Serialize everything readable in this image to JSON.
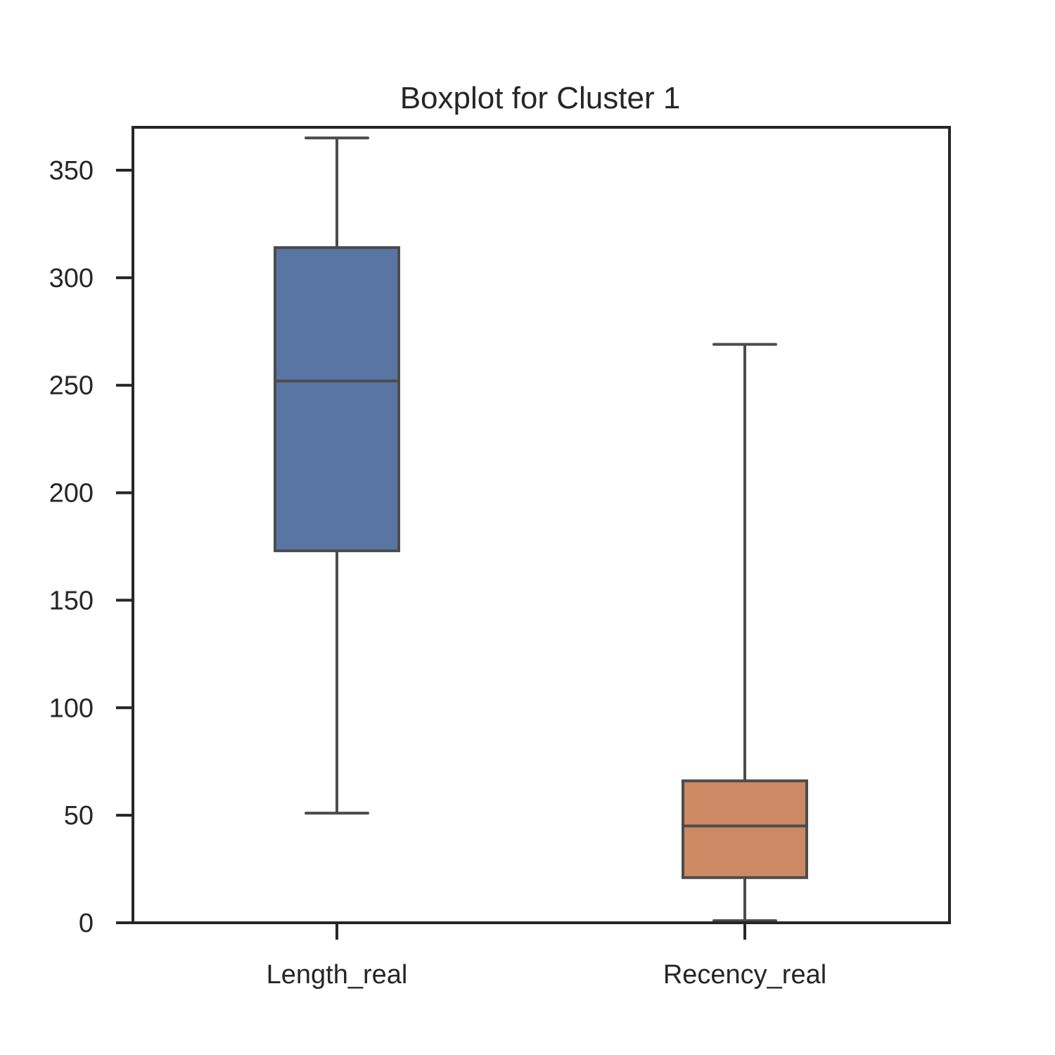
{
  "chart_data": {
    "type": "boxplot",
    "title": "Boxplot for Cluster 1",
    "xlabel": "",
    "ylabel": "",
    "ylim": [
      0,
      370
    ],
    "yticks": [
      0,
      50,
      100,
      150,
      200,
      250,
      300,
      350
    ],
    "categories": [
      "Length_real",
      "Recency_real"
    ],
    "boxes": [
      {
        "category": "Length_real",
        "whisker_low": 51,
        "q1": 173,
        "median": 252,
        "q3": 314,
        "whisker_high": 365,
        "color": "#5875a4"
      },
      {
        "category": "Recency_real",
        "whisker_low": 1,
        "q1": 21,
        "median": 45,
        "q3": 66,
        "whisker_high": 269,
        "color": "#cc8963"
      }
    ],
    "grid": false,
    "legend": "none",
    "edge_color": "#4c4c4c",
    "axis_color": "#262626"
  }
}
